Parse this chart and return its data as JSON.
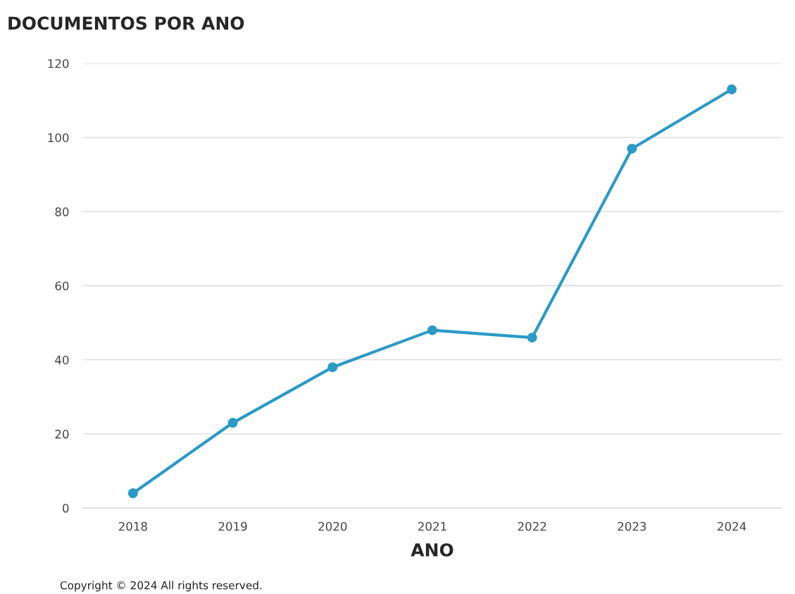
{
  "chart_data": {
    "type": "line",
    "title": "DOCUMENTOS POR ANO",
    "xlabel": "ANO",
    "categories": [
      "2018",
      "2019",
      "2020",
      "2021",
      "2022",
      "2023",
      "2024"
    ],
    "series": [
      {
        "color": "#2a9ac6",
        "values": [
          4,
          23,
          38,
          48,
          46,
          97,
          113
        ]
      }
    ],
    "ylim": [
      0,
      120
    ],
    "yticks": [
      0,
      20,
      40,
      60,
      80,
      100,
      120
    ],
    "grid": "y",
    "marker": "circle",
    "line_style": "solid",
    "annotations": [
      "Copyright © 2024 All rights reserved."
    ]
  }
}
